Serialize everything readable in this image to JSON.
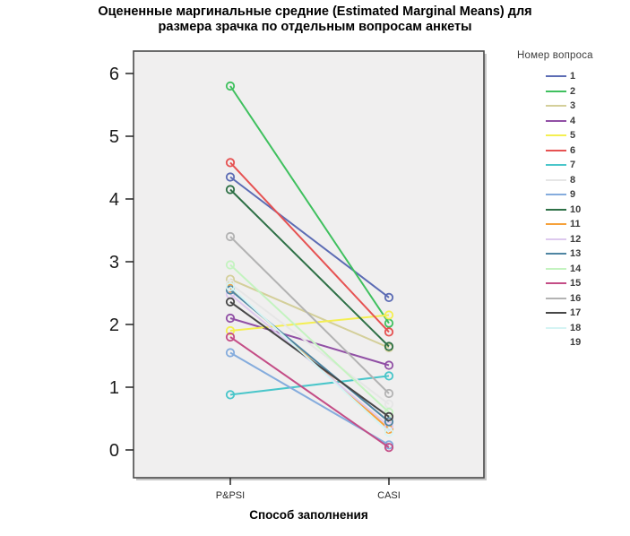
{
  "title": {
    "line1": "Оцененные маргинальные средние (Estimated Marginal Means) для",
    "line2": "размера зрачка по отдельным вопросам анкеты"
  },
  "x_axis": {
    "label": "Способ заполнения",
    "categories": [
      "P&PSI",
      "CASI"
    ]
  },
  "y_axis": {
    "ticks": [
      0,
      1,
      2,
      3,
      4,
      5,
      6
    ]
  },
  "legend": {
    "title": "Номер вопроса"
  },
  "colors": {
    "plot_background": "#f0efef",
    "plot_border": "#4a4a4a",
    "tick_text": "#1a1a1a"
  },
  "chart_data": {
    "type": "line",
    "title": "Оцененные маргинальные средние (Estimated Marginal Means) для размера зрачка по отдельным вопросам анкеты",
    "xlabel": "Способ заполнения",
    "ylabel": "",
    "categories": [
      "P&PSI",
      "CASI"
    ],
    "ylim": [
      0,
      6
    ],
    "yticks": [
      0,
      1,
      2,
      3,
      4,
      5,
      6
    ],
    "grid": false,
    "marker": "open-circle",
    "legend_title": "Номер вопроса",
    "legend_position": "right",
    "series": [
      {
        "name": "1",
        "color": "#5c6cb4",
        "values": [
          4.35,
          2.43
        ]
      },
      {
        "name": "2",
        "color": "#3fc05e",
        "values": [
          5.8,
          2.02
        ]
      },
      {
        "name": "3",
        "color": "#d4cf9a",
        "values": [
          2.72,
          1.63
        ]
      },
      {
        "name": "4",
        "color": "#9150a5",
        "values": [
          2.1,
          1.35
        ]
      },
      {
        "name": "5",
        "color": "#f4ef52",
        "values": [
          1.9,
          2.15
        ]
      },
      {
        "name": "6",
        "color": "#e65252",
        "values": [
          4.58,
          1.88
        ]
      },
      {
        "name": "7",
        "color": "#4ac6ca",
        "values": [
          0.88,
          1.18
        ]
      },
      {
        "name": "8",
        "color": "#e6e6e6",
        "values": [
          2.65,
          0.73
        ]
      },
      {
        "name": "9",
        "color": "#85acdd",
        "values": [
          1.55,
          0.08
        ]
      },
      {
        "name": "10",
        "color": "#2e7046",
        "values": [
          4.15,
          1.65
        ]
      },
      {
        "name": "11",
        "color": "#f6a13a",
        "values": [
          2.58,
          0.33
        ]
      },
      {
        "name": "12",
        "color": "#ddc9ee",
        "values": [
          2.48,
          0.38
        ]
      },
      {
        "name": "13",
        "color": "#4e85a2",
        "values": [
          2.55,
          0.45
        ]
      },
      {
        "name": "14",
        "color": "#c4f3c0",
        "values": [
          2.95,
          0.6
        ]
      },
      {
        "name": "15",
        "color": "#c44d86",
        "values": [
          1.8,
          0.04
        ]
      },
      {
        "name": "16",
        "color": "#b3b3b3",
        "values": [
          3.4,
          0.9
        ]
      },
      {
        "name": "17",
        "color": "#474747",
        "values": [
          2.36,
          0.53
        ]
      },
      {
        "name": "18",
        "color": "#d5f4f4",
        "values": [
          2.6,
          0.28
        ]
      },
      {
        "name": "19",
        "color": null,
        "values": null
      }
    ]
  }
}
